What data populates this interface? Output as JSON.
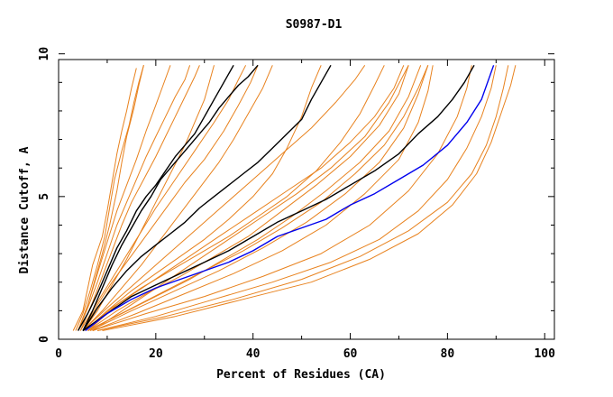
{
  "chart_data": {
    "type": "line",
    "title": "S0987-D1",
    "xlabel": "Percent of Residues (CA)",
    "ylabel": "Distance Cutoff, A",
    "xlim": [
      0,
      102
    ],
    "ylim": [
      0,
      9.8
    ],
    "xticks": [
      0,
      20,
      40,
      60,
      80,
      100
    ],
    "yticks": [
      0,
      5,
      10
    ],
    "xtick_labels": [
      "0",
      "20",
      "40",
      "60",
      "80",
      "100"
    ],
    "ytick_labels": [
      "0",
      "5",
      "10"
    ],
    "colors": {
      "orange": "#e8821e",
      "black": "#000000",
      "blue": "#0000ee"
    },
    "series": [
      {
        "name": "orange-1",
        "color": "orange",
        "x": [
          3,
          5,
          6,
          7,
          9,
          10,
          11,
          12,
          13,
          14,
          15,
          16
        ],
        "y": [
          0.3,
          1.0,
          1.8,
          2.6,
          3.6,
          4.5,
          5.5,
          6.5,
          7.3,
          8.0,
          8.8,
          9.5
        ]
      },
      {
        "name": "orange-2",
        "color": "orange",
        "x": [
          3.5,
          5,
          6.5,
          8,
          9.5,
          10.5,
          11.5,
          13,
          14.5,
          15.5,
          16.5,
          17.5
        ],
        "y": [
          0.3,
          0.9,
          1.7,
          2.6,
          3.6,
          4.6,
          5.6,
          6.6,
          7.5,
          8.3,
          9.0,
          9.6
        ]
      },
      {
        "name": "orange-3",
        "color": "orange",
        "x": [
          4,
          6,
          7.5,
          9,
          10.5,
          12,
          13,
          14,
          15.5,
          16.5,
          17.5
        ],
        "y": [
          0.3,
          1.2,
          2.1,
          3.0,
          4.0,
          5.2,
          6.2,
          7.1,
          8.1,
          8.9,
          9.6
        ]
      },
      {
        "name": "orange-4",
        "color": "orange",
        "x": [
          4,
          6,
          8,
          10,
          12,
          14,
          16,
          18,
          20,
          22,
          24,
          26,
          27
        ],
        "y": [
          0.3,
          1.1,
          2.0,
          3.0,
          4.0,
          4.8,
          5.6,
          6.4,
          7.1,
          7.8,
          8.5,
          9.1,
          9.6
        ]
      },
      {
        "name": "orange-5",
        "color": "orange",
        "x": [
          4.5,
          7,
          9,
          11,
          13,
          15,
          17.5,
          20,
          22,
          24,
          26,
          28,
          29
        ],
        "y": [
          0.3,
          1.3,
          2.2,
          3.1,
          4.0,
          4.8,
          5.6,
          6.4,
          7.1,
          7.8,
          8.5,
          9.2,
          9.6
        ]
      },
      {
        "name": "orange-6",
        "color": "orange",
        "x": [
          5,
          8,
          11,
          14,
          17,
          20,
          23,
          26,
          28,
          30,
          31,
          32
        ],
        "y": [
          0.3,
          1.0,
          1.9,
          2.8,
          3.8,
          4.8,
          5.8,
          6.8,
          7.6,
          8.4,
          9.0,
          9.6
        ]
      },
      {
        "name": "orange-7",
        "color": "orange",
        "x": [
          5,
          8,
          11,
          14,
          17,
          20,
          23,
          26,
          30,
          34,
          37,
          39.5,
          41
        ],
        "y": [
          0.3,
          1.2,
          2.0,
          2.7,
          3.4,
          4.1,
          4.8,
          5.5,
          6.3,
          7.3,
          8.2,
          9.0,
          9.6
        ]
      },
      {
        "name": "orange-8",
        "color": "orange",
        "x": [
          5,
          9,
          13,
          17,
          21,
          25,
          29,
          33,
          36,
          39,
          42,
          44
        ],
        "y": [
          0.3,
          1.0,
          1.8,
          2.6,
          3.5,
          4.4,
          5.3,
          6.2,
          7.0,
          7.9,
          8.8,
          9.6
        ]
      },
      {
        "name": "orange-9",
        "color": "orange",
        "x": [
          5.5,
          10,
          15,
          20,
          25,
          30,
          35,
          40,
          44,
          47,
          50,
          52,
          54
        ],
        "y": [
          0.3,
          1.0,
          1.7,
          2.3,
          2.9,
          3.5,
          4.2,
          5.0,
          5.8,
          6.7,
          7.8,
          8.8,
          9.6
        ]
      },
      {
        "name": "orange-10",
        "color": "orange",
        "x": [
          5.5,
          11,
          17,
          23,
          29,
          35,
          41,
          47,
          53,
          58,
          62,
          65,
          67
        ],
        "y": [
          0.3,
          1.1,
          1.8,
          2.4,
          3.0,
          3.6,
          4.3,
          5.0,
          5.9,
          6.9,
          7.9,
          8.9,
          9.6
        ]
      },
      {
        "name": "orange-11",
        "color": "orange",
        "x": [
          6,
          12,
          18,
          25,
          32,
          39,
          46,
          53,
          60,
          66,
          70,
          72
        ],
        "y": [
          0.3,
          1.0,
          1.6,
          2.2,
          2.9,
          3.6,
          4.5,
          5.4,
          6.4,
          7.5,
          8.6,
          9.6
        ]
      },
      {
        "name": "orange-12",
        "color": "orange",
        "x": [
          6,
          13,
          20,
          27,
          34,
          41,
          48,
          55,
          62,
          68,
          72,
          74.5
        ],
        "y": [
          0.3,
          0.9,
          1.5,
          2.1,
          2.8,
          3.5,
          4.3,
          5.2,
          6.2,
          7.3,
          8.5,
          9.6
        ]
      },
      {
        "name": "orange-13",
        "color": "orange",
        "x": [
          6,
          14,
          22,
          30,
          38,
          46,
          54,
          61,
          67,
          71,
          74,
          76
        ],
        "y": [
          0.3,
          1.0,
          1.7,
          2.4,
          3.1,
          3.9,
          4.8,
          5.8,
          6.8,
          7.8,
          8.8,
          9.6
        ]
      },
      {
        "name": "orange-14",
        "color": "orange",
        "x": [
          6.5,
          15,
          24,
          33,
          42,
          51,
          59,
          66,
          71,
          74,
          76
        ],
        "y": [
          0.3,
          1.0,
          1.7,
          2.4,
          3.2,
          4.1,
          5.1,
          6.2,
          7.4,
          8.6,
          9.6
        ]
      },
      {
        "name": "orange-15",
        "color": "orange",
        "x": [
          7,
          16,
          26,
          36,
          46,
          55,
          63,
          70,
          74,
          76,
          77
        ],
        "y": [
          0.3,
          0.9,
          1.6,
          2.3,
          3.1,
          4.0,
          5.1,
          6.3,
          7.6,
          8.7,
          9.6
        ]
      },
      {
        "name": "orange-16",
        "color": "orange",
        "x": [
          7,
          18,
          30,
          42,
          54,
          64,
          72,
          78,
          82,
          84,
          85
        ],
        "y": [
          0.3,
          0.9,
          1.5,
          2.2,
          3.0,
          4.0,
          5.2,
          6.5,
          7.8,
          8.8,
          9.6
        ]
      },
      {
        "name": "orange-17",
        "color": "orange",
        "x": [
          8,
          20,
          32,
          44,
          56,
          66,
          74,
          80,
          84,
          87,
          89,
          90
        ],
        "y": [
          0.3,
          0.8,
          1.4,
          2.0,
          2.7,
          3.5,
          4.5,
          5.6,
          6.7,
          7.8,
          8.8,
          9.6
        ]
      },
      {
        "name": "orange-18",
        "color": "orange",
        "x": [
          8,
          22,
          36,
          50,
          62,
          72,
          80,
          85,
          88,
          90,
          91.5,
          92.5
        ],
        "y": [
          0.3,
          0.8,
          1.4,
          2.1,
          2.9,
          3.8,
          4.8,
          5.8,
          6.8,
          7.8,
          8.8,
          9.6
        ]
      },
      {
        "name": "orange-19",
        "color": "orange",
        "x": [
          9,
          24,
          38,
          52,
          64,
          74,
          81,
          86,
          89,
          91,
          93,
          94
        ],
        "y": [
          0.3,
          0.8,
          1.4,
          2.0,
          2.8,
          3.7,
          4.7,
          5.8,
          6.9,
          7.9,
          8.9,
          9.6
        ]
      },
      {
        "name": "orange-20",
        "color": "orange",
        "x": [
          7,
          14,
          21,
          28,
          35,
          42,
          49,
          56,
          63,
          68,
          72
        ],
        "y": [
          0.3,
          1.1,
          1.9,
          2.7,
          3.5,
          4.3,
          5.1,
          6.0,
          7.1,
          8.3,
          9.6
        ]
      },
      {
        "name": "orange-21",
        "color": "orange",
        "x": [
          6,
          12,
          19,
          26,
          33,
          40,
          47,
          54,
          60,
          65,
          69,
          71
        ],
        "y": [
          0.3,
          1.2,
          2.0,
          2.8,
          3.6,
          4.4,
          5.2,
          6.0,
          6.9,
          7.8,
          8.8,
          9.6
        ]
      },
      {
        "name": "orange-22",
        "color": "orange",
        "x": [
          5,
          10,
          16,
          22,
          28,
          34,
          40,
          46,
          52,
          57,
          61,
          63
        ],
        "y": [
          0.3,
          1.1,
          2.0,
          2.9,
          3.8,
          4.7,
          5.6,
          6.5,
          7.4,
          8.3,
          9.1,
          9.6
        ]
      },
      {
        "name": "orange-23",
        "color": "orange",
        "x": [
          4.5,
          8,
          12,
          16,
          20,
          24,
          28,
          32,
          35,
          37,
          38.5
        ],
        "y": [
          0.3,
          1.3,
          2.4,
          3.5,
          4.6,
          5.6,
          6.6,
          7.6,
          8.4,
          9.1,
          9.6
        ]
      },
      {
        "name": "orange-24",
        "color": "orange",
        "x": [
          4,
          6,
          8,
          10,
          12,
          14,
          16,
          18,
          20,
          21.5,
          23
        ],
        "y": [
          0.3,
          1.2,
          2.3,
          3.4,
          4.5,
          5.4,
          6.3,
          7.3,
          8.2,
          8.9,
          9.6
        ]
      },
      {
        "name": "black-1",
        "color": "black",
        "x": [
          4,
          6,
          8,
          10,
          12,
          14,
          16,
          18,
          20,
          22,
          24,
          26,
          28,
          30,
          32,
          34,
          36
        ],
        "y": [
          0.3,
          0.9,
          1.6,
          2.4,
          3.2,
          3.8,
          4.5,
          5.0,
          5.4,
          5.9,
          6.4,
          6.8,
          7.2,
          7.8,
          8.4,
          9.0,
          9.6
        ]
      },
      {
        "name": "black-2",
        "color": "black",
        "x": [
          5,
          7,
          9,
          11,
          13,
          15,
          17,
          19,
          21,
          23,
          25,
          27,
          29,
          31,
          33,
          35,
          37,
          39,
          41
        ],
        "y": [
          0.3,
          1.0,
          1.8,
          2.6,
          3.3,
          3.9,
          4.5,
          5.0,
          5.6,
          6.0,
          6.4,
          6.8,
          7.2,
          7.6,
          8.1,
          8.5,
          8.9,
          9.2,
          9.6
        ]
      },
      {
        "name": "black-3",
        "color": "black",
        "x": [
          5,
          8,
          11,
          14,
          17,
          20,
          23,
          26,
          29,
          32,
          35,
          38,
          41,
          44,
          47,
          50,
          52,
          54,
          56
        ],
        "y": [
          0.3,
          1.1,
          1.8,
          2.4,
          2.9,
          3.3,
          3.7,
          4.1,
          4.6,
          5.0,
          5.4,
          5.8,
          6.2,
          6.7,
          7.2,
          7.7,
          8.4,
          9.0,
          9.6
        ]
      },
      {
        "name": "black-4",
        "color": "black",
        "x": [
          5,
          10,
          15,
          20,
          25,
          30,
          35,
          40,
          45,
          50,
          55,
          60,
          65,
          70,
          74,
          78,
          81,
          83.5,
          85.5
        ],
        "y": [
          0.3,
          0.9,
          1.5,
          1.9,
          2.3,
          2.7,
          3.1,
          3.6,
          4.1,
          4.5,
          4.9,
          5.4,
          5.9,
          6.5,
          7.2,
          7.8,
          8.4,
          9.0,
          9.6
        ]
      },
      {
        "name": "blue-1",
        "color": "blue",
        "x": [
          5.5,
          10,
          15,
          20,
          25,
          30,
          35,
          40,
          45,
          50,
          55,
          60,
          65,
          70,
          75,
          80,
          84,
          87,
          89.5
        ],
        "y": [
          0.3,
          0.9,
          1.4,
          1.8,
          2.1,
          2.4,
          2.7,
          3.1,
          3.6,
          3.9,
          4.2,
          4.7,
          5.1,
          5.6,
          6.1,
          6.8,
          7.6,
          8.4,
          9.6
        ]
      }
    ]
  }
}
